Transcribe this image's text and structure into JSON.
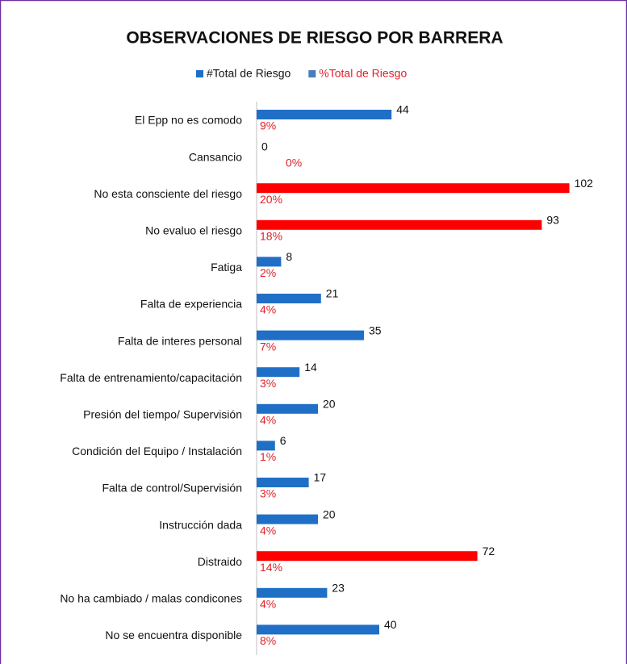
{
  "chart_data": {
    "type": "bar",
    "orientation": "horizontal",
    "title": "OBSERVACIONES DE RIESGO POR BARRERA",
    "categories": [
      "El Epp no es comodo",
      "Cansancio",
      "No esta consciente del riesgo",
      "No evaluo el riesgo",
      "Fatiga",
      "Falta de experiencia",
      "Falta de interes personal",
      "Falta de entrenamiento/capacitación",
      "Presión del tiempo/ Supervisión",
      "Condición del Equipo / Instalación",
      "Falta de control/Supervisión",
      "Instrucción dada",
      "Distraido",
      "No ha cambiado / malas condicones",
      "No se encuentra disponible"
    ],
    "series": [
      {
        "name": "#Total de Riesgo",
        "color": "#1f6fc6",
        "colors": [
          "#1f6fc6",
          "#1f6fc6",
          "#ff0000",
          "#ff0000",
          "#1f6fc6",
          "#1f6fc6",
          "#1f6fc6",
          "#1f6fc6",
          "#1f6fc6",
          "#1f6fc6",
          "#1f6fc6",
          "#1f6fc6",
          "#ff0000",
          "#1f6fc6",
          "#1f6fc6"
        ],
        "values": [
          44,
          0,
          102,
          93,
          8,
          21,
          35,
          14,
          20,
          6,
          17,
          20,
          72,
          23,
          40
        ]
      },
      {
        "name": "%Total de Riesgo",
        "color": "#4a7ebb",
        "values": [
          9,
          0,
          20,
          18,
          2,
          4,
          7,
          3,
          4,
          1,
          3,
          4,
          14,
          4,
          8
        ],
        "value_labels": [
          "9%",
          "0%",
          "20%",
          "18%",
          "2%",
          "4%",
          "7%",
          "3%",
          "4%",
          "1%",
          "3%",
          "4%",
          "14%",
          "4%",
          "8%"
        ]
      }
    ],
    "xlim": [
      0,
      120
    ],
    "legend": "top"
  }
}
